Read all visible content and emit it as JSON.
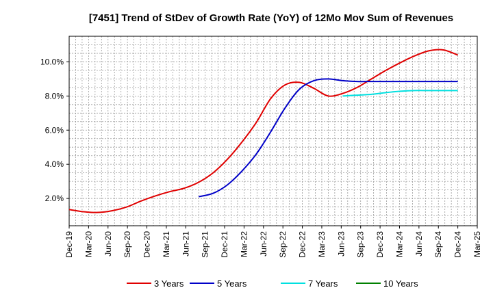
{
  "chart_data": {
    "type": "line",
    "title": "[7451]  Trend of StDev of Growth Rate (YoY) of 12Mo Mov Sum of Revenues",
    "xlabel": "",
    "ylabel": "",
    "x_ticks": [
      "Dec-19",
      "Mar-20",
      "Jun-20",
      "Sep-20",
      "Dec-20",
      "Mar-21",
      "Jun-21",
      "Sep-21",
      "Dec-21",
      "Mar-22",
      "Jun-22",
      "Sep-22",
      "Dec-22",
      "Mar-23",
      "Jun-23",
      "Sep-23",
      "Dec-23",
      "Mar-24",
      "Jun-24",
      "Sep-24",
      "Dec-24",
      "Mar-25"
    ],
    "y_ticks": [
      2.0,
      4.0,
      6.0,
      8.0,
      10.0
    ],
    "y_tick_labels": [
      "2.0%",
      "4.0%",
      "6.0%",
      "8.0%",
      "10.0%"
    ],
    "ylim": [
      0.4,
      11.5
    ],
    "grid": true,
    "legend_position": "bottom",
    "series": [
      {
        "name": "3 Years",
        "color": "#e00000",
        "values": [
          1.35,
          1.22,
          1.18,
          1.28,
          1.5,
          1.85,
          2.15,
          2.4,
          2.6,
          2.95,
          3.5,
          4.3,
          5.3,
          6.45,
          7.85,
          8.65,
          8.8,
          8.45,
          8.0,
          8.15,
          8.5,
          9.0,
          9.5,
          9.95,
          10.35,
          10.65,
          10.7,
          10.4
        ]
      },
      {
        "name": "5 Years",
        "color": "#0000c8",
        "values": [
          null,
          null,
          null,
          null,
          null,
          null,
          null,
          null,
          null,
          2.1,
          2.3,
          2.8,
          3.6,
          4.6,
          5.9,
          7.3,
          8.4,
          8.9,
          9.0,
          8.9,
          8.85,
          8.85,
          8.85,
          8.85,
          8.85,
          8.85,
          8.85,
          8.85
        ]
      },
      {
        "name": "7 Years",
        "color": "#00e0e0",
        "values": [
          null,
          null,
          null,
          null,
          null,
          null,
          null,
          null,
          null,
          null,
          null,
          null,
          null,
          null,
          null,
          null,
          null,
          null,
          null,
          8.0,
          8.05,
          8.1,
          8.2,
          8.28,
          8.32,
          8.32,
          8.32,
          8.32
        ]
      },
      {
        "name": "10 Years",
        "color": "#008000",
        "values": [
          null,
          null,
          null,
          null,
          null,
          null,
          null,
          null,
          null,
          null,
          null,
          null,
          null,
          null,
          null,
          null,
          null,
          null,
          null,
          null,
          null,
          null,
          null,
          null,
          null,
          null,
          null,
          null
        ]
      }
    ]
  }
}
